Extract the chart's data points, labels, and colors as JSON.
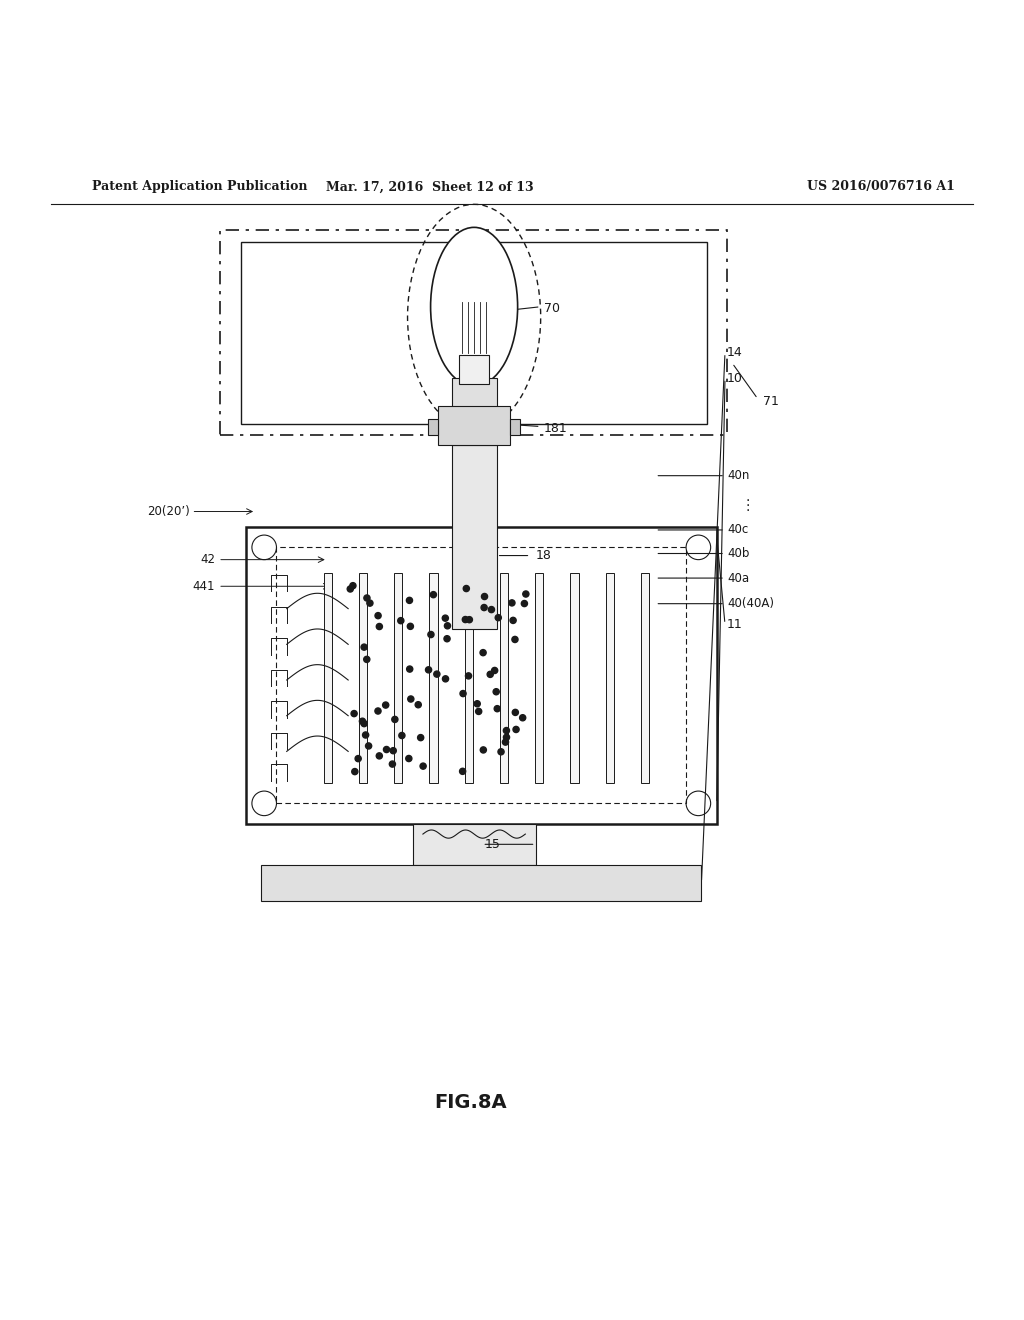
{
  "title_left": "Patent Application Publication",
  "title_mid": "Mar. 17, 2016  Sheet 12 of 13",
  "title_right": "US 2016/0076716 A1",
  "fig_label": "FIG.8A",
  "background": "#ffffff",
  "line_color": "#1a1a1a"
}
